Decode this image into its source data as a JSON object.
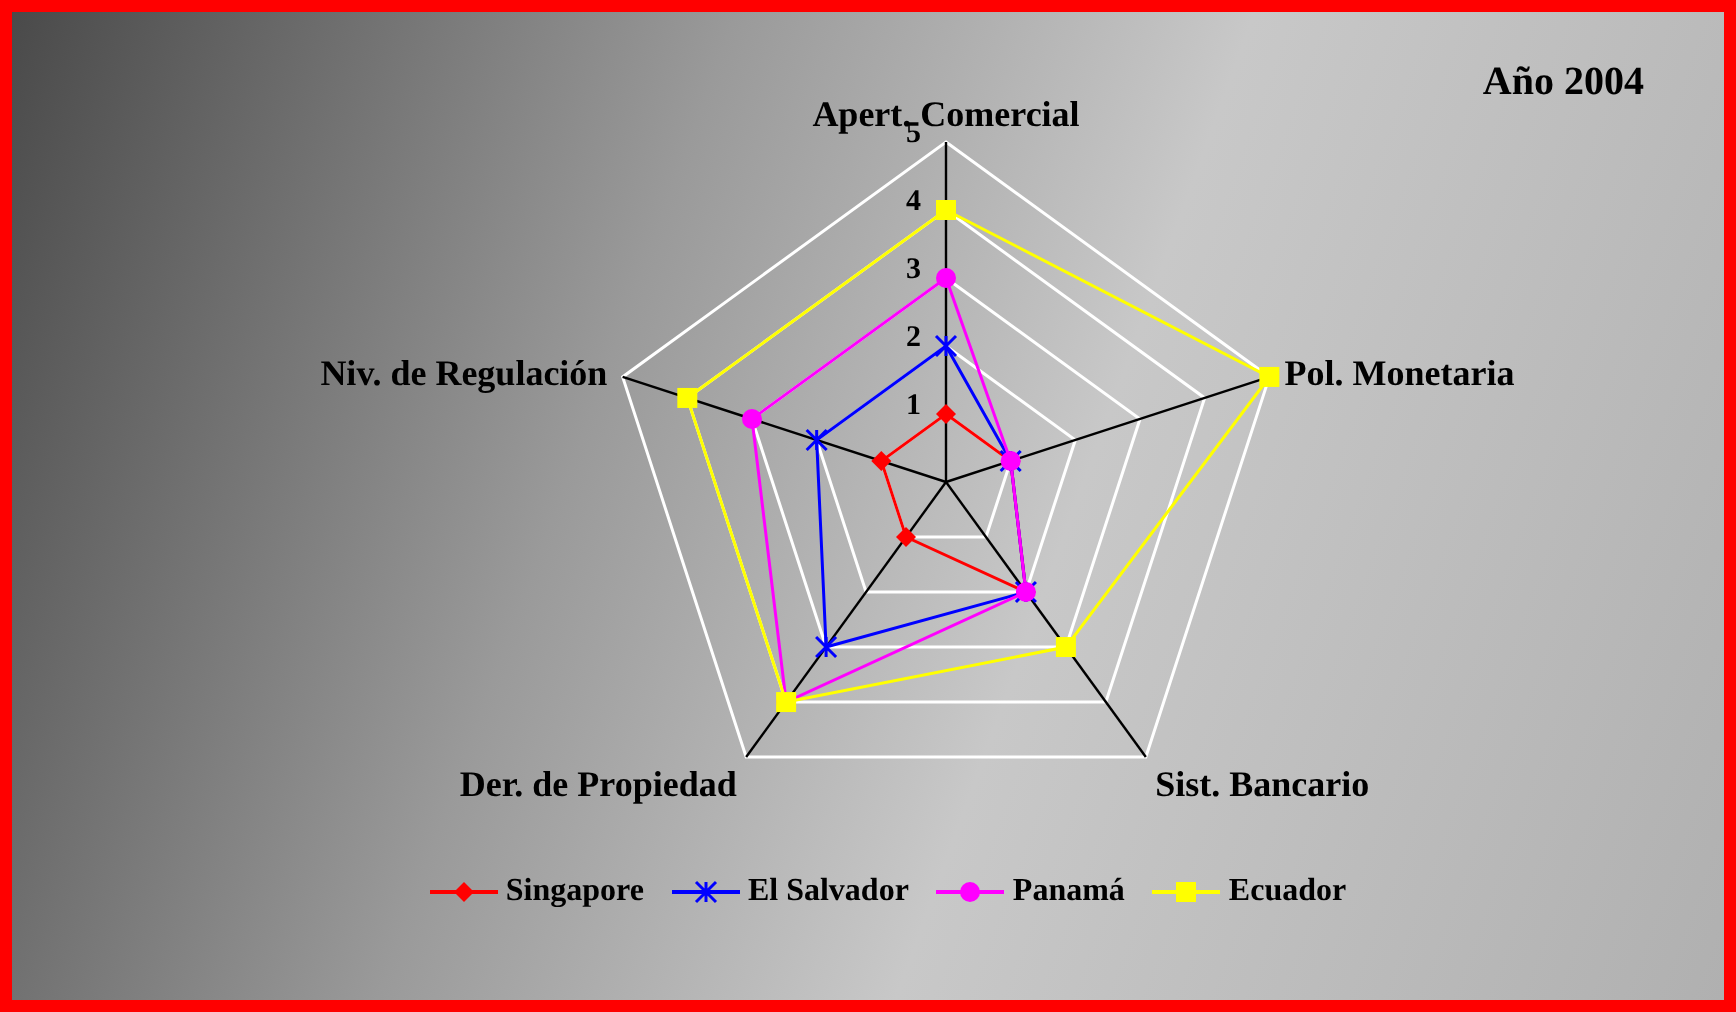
{
  "chart_data": {
    "type": "radar",
    "title": "Año 2004",
    "categories": [
      "Apert. Comercial",
      "Pol. Monetaria",
      "Sist. Bancario",
      "Der. de Propiedad",
      "Niv. de Regulación"
    ],
    "series": [
      {
        "name": "Singapore",
        "color": "#ff0000",
        "marker": "diamond",
        "values": [
          1,
          1,
          2,
          1,
          1
        ]
      },
      {
        "name": "El Salvador",
        "color": "#0000ff",
        "marker": "star",
        "values": [
          2,
          1,
          2,
          3,
          2
        ]
      },
      {
        "name": "Panamá",
        "color": "#ff00ff",
        "marker": "circle",
        "values": [
          3,
          1,
          2,
          4,
          3
        ]
      },
      {
        "name": "Ecuador",
        "color": "#ffff00",
        "marker": "square",
        "values": [
          4,
          5,
          3,
          4,
          4
        ]
      }
    ],
    "ylim": [
      0,
      5
    ],
    "yticks": [
      1,
      2,
      3,
      4,
      5
    ],
    "grid": true,
    "legend": "bottom"
  }
}
